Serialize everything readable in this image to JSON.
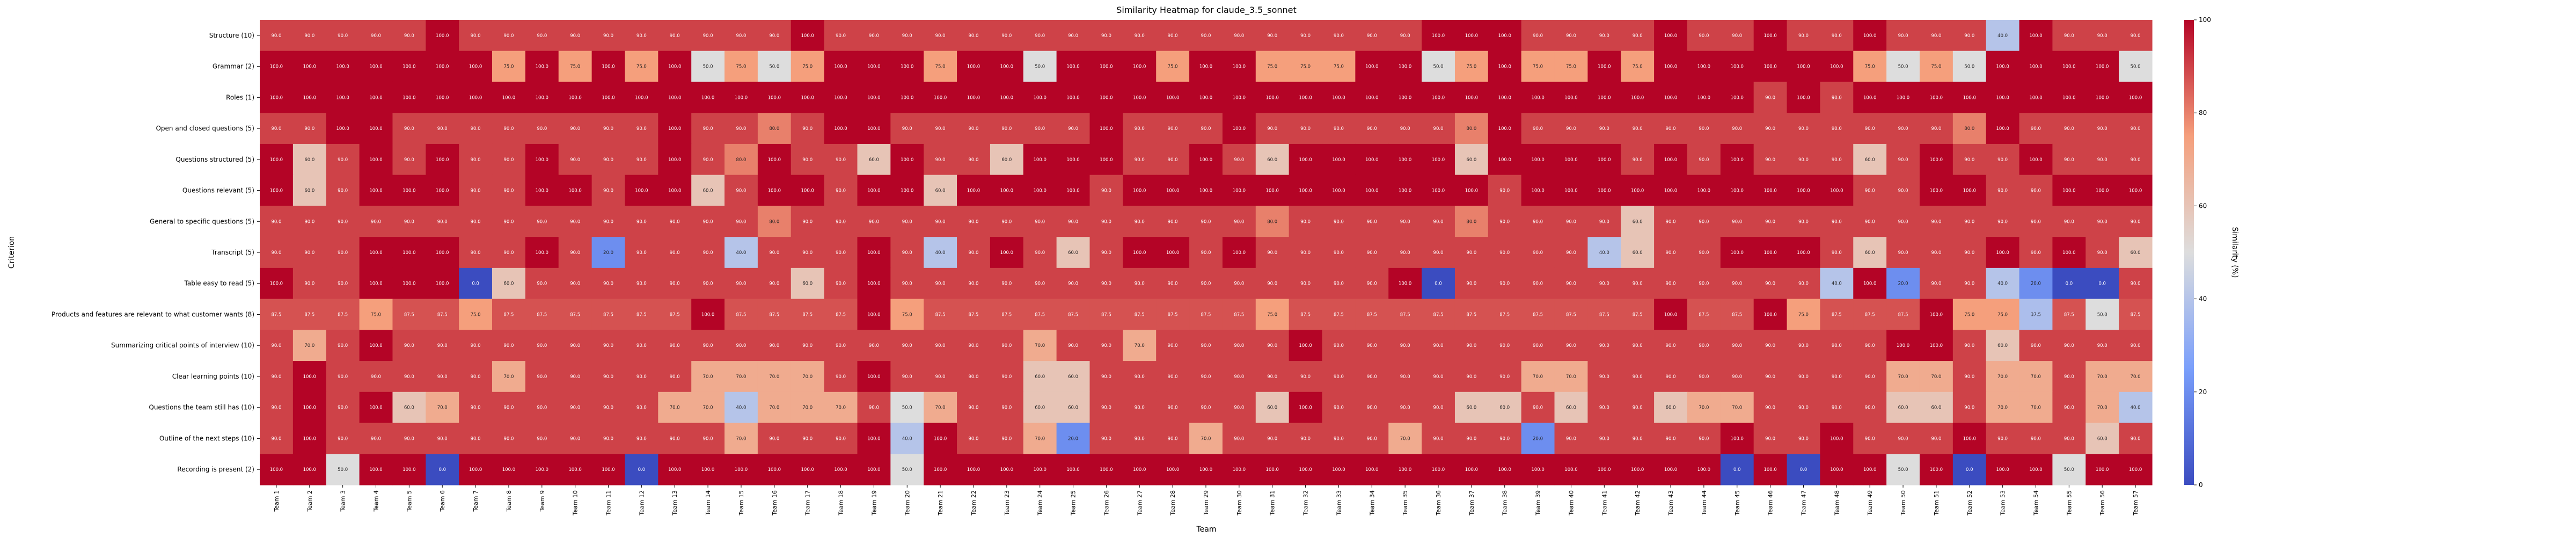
{
  "chart_data": {
    "type": "heatmap",
    "title": "Similarity Heatmap for claude_3.5_sonnet",
    "xlabel": "Team",
    "ylabel": "Criterion",
    "colorbar_label": "Similarity (%)",
    "colorbar_ticks": [
      0,
      20,
      40,
      60,
      80,
      100
    ],
    "value_range": [
      0,
      100
    ],
    "colormap": "coolwarm",
    "rows": [
      "Structure (10)",
      "Grammar (2)",
      "Roles (1)",
      "Open and closed questions (5)",
      "Questions structured (5)",
      "Questions relevant (5)",
      "General to specific questions (5)",
      "Transcript (5)",
      "Table easy to read (5)",
      "Products and features are relevant to what customer wants (8)",
      "Summarizing critical points of interview (10)",
      "Clear learning points (10)",
      "Questions the team still has (10)",
      "Outline of the next steps (10)",
      "Recording is present (2)"
    ],
    "columns": [
      "Team 1",
      "Team 2",
      "Team 3",
      "Team 4",
      "Team 5",
      "Team 6",
      "Team 7",
      "Team 8",
      "Team 9",
      "Team 10",
      "Team 11",
      "Team 12",
      "Team 13",
      "Team 14",
      "Team 15",
      "Team 16",
      "Team 17",
      "Team 18",
      "Team 19",
      "Team 20",
      "Team 21",
      "Team 22",
      "Team 23",
      "Team 24",
      "Team 25",
      "Team 26",
      "Team 27",
      "Team 28",
      "Team 29",
      "Team 30",
      "Team 31",
      "Team 32",
      "Team 33",
      "Team 34",
      "Team 35",
      "Team 36",
      "Team 37",
      "Team 38",
      "Team 39",
      "Team 40",
      "Team 41",
      "Team 42",
      "Team 43",
      "Team 44",
      "Team 45",
      "Team 46",
      "Team 47",
      "Team 48",
      "Team 49",
      "Team 50",
      "Team 51",
      "Team 52",
      "Team 53",
      "Team 54",
      "Team 55",
      "Team 56",
      "Team 57"
    ],
    "values": [
      [
        90,
        90,
        90,
        90,
        90,
        100,
        90,
        90,
        90,
        90,
        90,
        90,
        90,
        90,
        90,
        90,
        100,
        90,
        90,
        90,
        90,
        90,
        90,
        90,
        90,
        90,
        90,
        90,
        90,
        90,
        90,
        90,
        90,
        90,
        90,
        100,
        100,
        100,
        90,
        90,
        90,
        90,
        100,
        90,
        90,
        100,
        90,
        90,
        100,
        90,
        90,
        90,
        40,
        100,
        90,
        90,
        90
      ],
      [
        100,
        100,
        100,
        100,
        100,
        100,
        100,
        75,
        100,
        75,
        100,
        75,
        100,
        50,
        75,
        50,
        75,
        100,
        100,
        100,
        75,
        100,
        100,
        50,
        100,
        100,
        100,
        75,
        100,
        100,
        75,
        75,
        75,
        100,
        100,
        50,
        75,
        100,
        75,
        75,
        100,
        75,
        100,
        100,
        100,
        100,
        100,
        100,
        75,
        50,
        75,
        50,
        100,
        100,
        100,
        100,
        50
      ],
      [
        100,
        100,
        100,
        100,
        100,
        100,
        100,
        100,
        100,
        100,
        100,
        100,
        100,
        100,
        100,
        100,
        100,
        100,
        100,
        100,
        100,
        100,
        100,
        100,
        100,
        100,
        100,
        100,
        100,
        100,
        100,
        100,
        100,
        100,
        100,
        100,
        100,
        100,
        100,
        100,
        100,
        100,
        100,
        100,
        100,
        90,
        100,
        90,
        100,
        100,
        100,
        100,
        100,
        100,
        100,
        100,
        100
      ],
      [
        90,
        90,
        100,
        100,
        90,
        90,
        90,
        90,
        90,
        90,
        90,
        90,
        100,
        90,
        90,
        80,
        90,
        100,
        100,
        90,
        90,
        90,
        90,
        90,
        90,
        100,
        90,
        90,
        90,
        100,
        90,
        90,
        90,
        90,
        90,
        90,
        80,
        100,
        90,
        90,
        90,
        90,
        90,
        90,
        90,
        90,
        90,
        90,
        90,
        90,
        90,
        80,
        100,
        90,
        90,
        90,
        90
      ],
      [
        100,
        60,
        90,
        100,
        90,
        100,
        90,
        90,
        100,
        90,
        90,
        90,
        100,
        90,
        80,
        100,
        90,
        90,
        60,
        100,
        90,
        90,
        60,
        100,
        100,
        100,
        90,
        90,
        100,
        90,
        60,
        100,
        100,
        100,
        100,
        100,
        60,
        100,
        100,
        100,
        100,
        90,
        100,
        90,
        100,
        90,
        90,
        90,
        60,
        90,
        100,
        90,
        90,
        100,
        90,
        90,
        90
      ],
      [
        100,
        60,
        90,
        100,
        100,
        100,
        90,
        90,
        100,
        100,
        90,
        100,
        100,
        60,
        90,
        100,
        100,
        90,
        100,
        100,
        60,
        100,
        100,
        100,
        100,
        90,
        100,
        100,
        100,
        100,
        100,
        100,
        100,
        100,
        100,
        100,
        100,
        90,
        100,
        100,
        100,
        100,
        100,
        100,
        100,
        100,
        100,
        100,
        90,
        90,
        100,
        100,
        90,
        90,
        100,
        100,
        100
      ],
      [
        90,
        90,
        90,
        90,
        90,
        90,
        90,
        90,
        90,
        90,
        90,
        90,
        90,
        90,
        90,
        80,
        90,
        90,
        90,
        90,
        90,
        90,
        90,
        90,
        90,
        90,
        90,
        90,
        90,
        90,
        80,
        90,
        90,
        90,
        90,
        90,
        80,
        90,
        90,
        90,
        90,
        60,
        90,
        90,
        90,
        90,
        90,
        90,
        90,
        90,
        90,
        90,
        90,
        90,
        90,
        90,
        90
      ],
      [
        90,
        90,
        90,
        100,
        100,
        100,
        90,
        90,
        100,
        90,
        20,
        90,
        90,
        90,
        40,
        90,
        90,
        90,
        100,
        90,
        40,
        90,
        100,
        90,
        60,
        90,
        100,
        100,
        90,
        100,
        90,
        90,
        90,
        90,
        90,
        90,
        90,
        90,
        90,
        90,
        40,
        60,
        90,
        90,
        100,
        100,
        100,
        90,
        60,
        90,
        90,
        90,
        100,
        90,
        100,
        90,
        60
      ],
      [
        100,
        90,
        90,
        100,
        100,
        100,
        0,
        60,
        90,
        90,
        90,
        90,
        90,
        90,
        90,
        90,
        60,
        90,
        100,
        90,
        90,
        90,
        90,
        90,
        90,
        90,
        90,
        90,
        90,
        90,
        90,
        90,
        90,
        90,
        100,
        0,
        90,
        90,
        90,
        90,
        90,
        90,
        90,
        90,
        90,
        90,
        90,
        40,
        100,
        20,
        90,
        90,
        40,
        20,
        0,
        0,
        90
      ],
      [
        87.5,
        87.5,
        87.5,
        75,
        87.5,
        87.5,
        75,
        87.5,
        87.5,
        87.5,
        87.5,
        87.5,
        87.5,
        100,
        87.5,
        87.5,
        87.5,
        87.5,
        100,
        75,
        87.5,
        87.5,
        87.5,
        87.5,
        87.5,
        87.5,
        87.5,
        87.5,
        87.5,
        87.5,
        75,
        87.5,
        87.5,
        87.5,
        87.5,
        87.5,
        87.5,
        87.5,
        87.5,
        87.5,
        87.5,
        87.5,
        100,
        87.5,
        87.5,
        100,
        75,
        87.5,
        87.5,
        87.5,
        100,
        75,
        75,
        37.5,
        87.5,
        50,
        87.5
      ],
      [
        90,
        70,
        90,
        100,
        90,
        90,
        90,
        90,
        90,
        90,
        90,
        90,
        90,
        90,
        90,
        90,
        90,
        90,
        90,
        90,
        90,
        90,
        90,
        70,
        90,
        90,
        70,
        90,
        90,
        90,
        90,
        100,
        90,
        90,
        90,
        90,
        90,
        90,
        90,
        90,
        90,
        90,
        90,
        90,
        90,
        90,
        90,
        90,
        90,
        100,
        100,
        90,
        60,
        90,
        90,
        90,
        90
      ],
      [
        90,
        100,
        90,
        90,
        90,
        90,
        90,
        70,
        90,
        90,
        90,
        90,
        90,
        70,
        70,
        70,
        70,
        90,
        100,
        90,
        90,
        90,
        90,
        60,
        60,
        90,
        90,
        90,
        90,
        90,
        90,
        90,
        90,
        90,
        90,
        90,
        90,
        90,
        70,
        70,
        90,
        90,
        90,
        90,
        90,
        90,
        90,
        90,
        90,
        70,
        70,
        90,
        70,
        70,
        90,
        70,
        70
      ],
      [
        90,
        100,
        90,
        100,
        60,
        70,
        90,
        90,
        90,
        90,
        90,
        90,
        70,
        70,
        40,
        70,
        70,
        70,
        90,
        50,
        70,
        90,
        90,
        60,
        60,
        90,
        90,
        90,
        90,
        90,
        60,
        100,
        90,
        90,
        90,
        90,
        60,
        60,
        90,
        60,
        90,
        90,
        60,
        70,
        70,
        90,
        90,
        90,
        90,
        60,
        60,
        90,
        70,
        70,
        90,
        70,
        40
      ],
      [
        90,
        100,
        90,
        90,
        90,
        90,
        90,
        90,
        90,
        90,
        90,
        90,
        90,
        90,
        70,
        90,
        90,
        90,
        100,
        40,
        100,
        90,
        90,
        70,
        20,
        90,
        90,
        90,
        70,
        90,
        90,
        90,
        90,
        90,
        70,
        90,
        90,
        90,
        20,
        90,
        90,
        90,
        90,
        90,
        100,
        90,
        90,
        100,
        90,
        90,
        90,
        100,
        90,
        90,
        90,
        60,
        90
      ],
      [
        100,
        100,
        50,
        100,
        100,
        0,
        100,
        100,
        100,
        100,
        100,
        0,
        100,
        100,
        100,
        100,
        100,
        100,
        100,
        50,
        100,
        100,
        100,
        100,
        100,
        100,
        100,
        100,
        100,
        100,
        100,
        100,
        100,
        100,
        100,
        100,
        100,
        100,
        100,
        100,
        100,
        100,
        100,
        100,
        0,
        100,
        0,
        100,
        100,
        50,
        100,
        0,
        100,
        100,
        50,
        100,
        100
      ]
    ]
  }
}
